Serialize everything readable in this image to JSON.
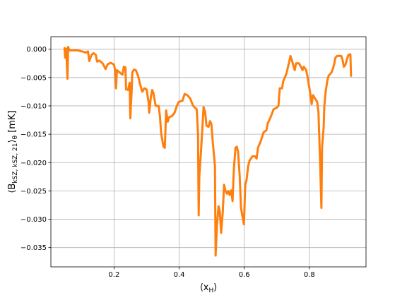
{
  "chart_data": {
    "type": "line",
    "xlabel": {
      "open": "⟨x",
      "sub": "H",
      "close": "⟩"
    },
    "ylabel": {
      "open": "⟨B",
      "sub": "kSZ, kSZ, 21",
      "close": "⟩",
      "sub2": "θ",
      "unit": " [mK]"
    },
    "xlim": [
      0.006,
      0.974
    ],
    "ylim": [
      -0.0384,
      0.0022
    ],
    "xticks": [
      0.2,
      0.4,
      0.6,
      0.8
    ],
    "yticks": [
      {
        "value": 0,
        "label": "0.000"
      },
      {
        "value": -0.005,
        "label": "−0.005"
      },
      {
        "value": -0.01,
        "label": "−0.010"
      },
      {
        "value": -0.015,
        "label": "−0.015"
      },
      {
        "value": -0.02,
        "label": "−0.020"
      },
      {
        "value": -0.025,
        "label": "−0.025"
      },
      {
        "value": -0.03,
        "label": "−0.030"
      },
      {
        "value": -0.035,
        "label": "−0.035"
      }
    ],
    "grid": true,
    "x": [
      0.048,
      0.05,
      0.053,
      0.057,
      0.059,
      0.063,
      0.087,
      0.102,
      0.113,
      0.12,
      0.124,
      0.131,
      0.137,
      0.144,
      0.148,
      0.155,
      0.165,
      0.174,
      0.18,
      0.189,
      0.2,
      0.204,
      0.206,
      0.209,
      0.217,
      0.226,
      0.23,
      0.235,
      0.237,
      0.243,
      0.248,
      0.25,
      0.252,
      0.254,
      0.256,
      0.261,
      0.267,
      0.274,
      0.28,
      0.287,
      0.293,
      0.3,
      0.306,
      0.308,
      0.313,
      0.317,
      0.321,
      0.328,
      0.337,
      0.341,
      0.345,
      0.352,
      0.356,
      0.36,
      0.365,
      0.369,
      0.378,
      0.386,
      0.393,
      0.399,
      0.41,
      0.417,
      0.425,
      0.434,
      0.443,
      0.454,
      0.458,
      0.46,
      0.462,
      0.467,
      0.471,
      0.475,
      0.48,
      0.484,
      0.49,
      0.495,
      0.499,
      0.503,
      0.51,
      0.512,
      0.516,
      0.521,
      0.525,
      0.529,
      0.534,
      0.538,
      0.542,
      0.547,
      0.551,
      0.555,
      0.56,
      0.564,
      0.568,
      0.573,
      0.577,
      0.581,
      0.586,
      0.59,
      0.594,
      0.599,
      0.603,
      0.607,
      0.612,
      0.616,
      0.625,
      0.633,
      0.638,
      0.642,
      0.651,
      0.659,
      0.668,
      0.672,
      0.681,
      0.69,
      0.7,
      0.705,
      0.709,
      0.716,
      0.72,
      0.729,
      0.737,
      0.742,
      0.746,
      0.755,
      0.759,
      0.768,
      0.774,
      0.779,
      0.783,
      0.79,
      0.794,
      0.798,
      0.802,
      0.807,
      0.811,
      0.824,
      0.828,
      0.833,
      0.837,
      0.839,
      0.844,
      0.846,
      0.85,
      0.855,
      0.859,
      0.868,
      0.872,
      0.876,
      0.88,
      0.885,
      0.898,
      0.902,
      0.906,
      0.911,
      0.915,
      0.92,
      0.926,
      0.928
    ],
    "series": [
      {
        "color": "#ff7f0e",
        "values": [
          0.0002,
          -0.0015,
          0.0001,
          -0.0052,
          0.0004,
          -0.0002,
          -0.0002,
          -0.0004,
          -0.0006,
          -0.0004,
          -0.0021,
          -0.001,
          -0.0007,
          -0.001,
          -0.0022,
          -0.002,
          -0.0025,
          -0.0035,
          -0.0027,
          -0.0024,
          -0.0027,
          -0.004,
          -0.0069,
          -0.0037,
          -0.0041,
          -0.0045,
          -0.0031,
          -0.0032,
          -0.0071,
          -0.0072,
          -0.0059,
          -0.0122,
          -0.0097,
          -0.0075,
          -0.0041,
          -0.0036,
          -0.0037,
          -0.0047,
          -0.0062,
          -0.0075,
          -0.0069,
          -0.0071,
          -0.0093,
          -0.0112,
          -0.0085,
          -0.0072,
          -0.0077,
          -0.01,
          -0.01,
          -0.0118,
          -0.015,
          -0.0172,
          -0.0174,
          -0.0108,
          -0.0128,
          -0.012,
          -0.0118,
          -0.0112,
          -0.01,
          -0.0093,
          -0.0091,
          -0.0079,
          -0.0081,
          -0.0087,
          -0.01,
          -0.0106,
          -0.015,
          -0.0293,
          -0.0224,
          -0.0181,
          -0.0143,
          -0.0102,
          -0.0112,
          -0.0135,
          -0.0137,
          -0.0127,
          -0.0132,
          -0.0162,
          -0.0206,
          -0.0364,
          -0.0312,
          -0.0277,
          -0.0287,
          -0.0324,
          -0.0287,
          -0.0239,
          -0.0249,
          -0.0255,
          -0.025,
          -0.0257,
          -0.0249,
          -0.0268,
          -0.0212,
          -0.0174,
          -0.0172,
          -0.0181,
          -0.0224,
          -0.028,
          -0.0293,
          -0.0309,
          -0.0239,
          -0.0231,
          -0.0206,
          -0.0197,
          -0.0189,
          -0.0189,
          -0.0193,
          -0.0174,
          -0.0162,
          -0.0147,
          -0.0143,
          -0.0131,
          -0.012,
          -0.0106,
          -0.0103,
          -0.01,
          -0.0069,
          -0.0069,
          -0.0056,
          -0.0044,
          -0.0025,
          -0.0012,
          -0.0019,
          -0.0037,
          -0.0025,
          -0.0025,
          -0.0031,
          -0.0037,
          -0.0031,
          -0.0037,
          -0.0047,
          -0.0062,
          -0.0075,
          -0.0097,
          -0.0081,
          -0.0093,
          -0.0112,
          -0.0199,
          -0.028,
          -0.0174,
          -0.0137,
          -0.01,
          -0.0075,
          -0.0056,
          -0.0047,
          -0.0041,
          -0.0035,
          -0.0027,
          -0.0015,
          -0.0012,
          -0.0012,
          -0.0019,
          -0.0031,
          -0.0027,
          -0.0019,
          -0.001,
          -0.0009,
          -0.0047
        ]
      }
    ]
  }
}
